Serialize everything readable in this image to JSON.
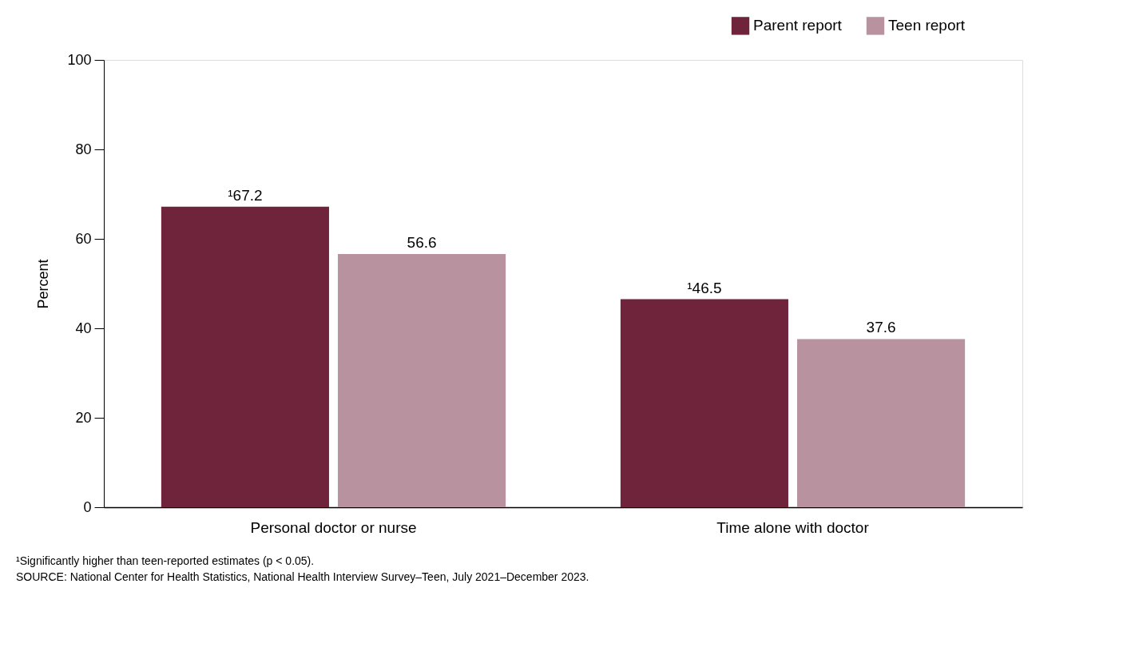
{
  "chart_data": {
    "type": "bar",
    "ylabel": "Percent",
    "categories": [
      "Personal doctor or nurse",
      "Time alone with doctor"
    ],
    "series": [
      {
        "name": "Parent report",
        "color": "#70243b",
        "values": [
          67.2,
          46.5
        ],
        "value_labels": [
          "¹67.2",
          "¹46.5"
        ]
      },
      {
        "name": "Teen report",
        "color": "#b8929e",
        "values": [
          56.6,
          37.6
        ],
        "value_labels": [
          "56.6",
          "37.6"
        ]
      }
    ],
    "ylim": [
      0,
      100
    ],
    "yticks": [
      0,
      20,
      40,
      60,
      80,
      100
    ],
    "grid": false,
    "legend": "top right",
    "annotations": [
      "¹Significantly higher than teen-reported estimates (p < 0.05).",
      "SOURCE: National Center for Health Statistics, National Health Interview Survey–Teen, July 2021–December 2023."
    ]
  }
}
